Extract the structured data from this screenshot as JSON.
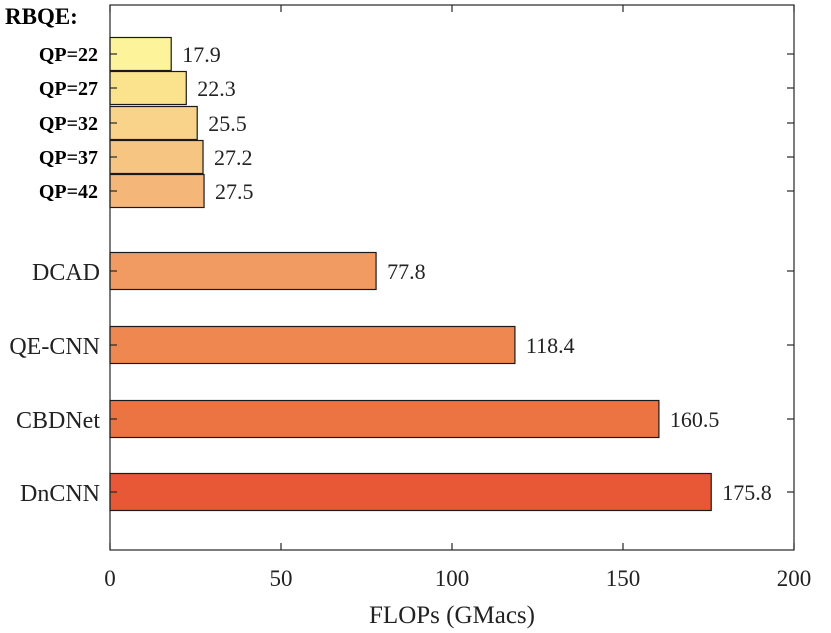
{
  "chart_data": {
    "type": "bar",
    "orientation": "horizontal",
    "title": "",
    "xlabel": "FLOPs (GMacs)",
    "ylabel": "",
    "xlim": [
      0,
      200
    ],
    "xticks": [
      0,
      50,
      100,
      150,
      200
    ],
    "grid": false,
    "group_label": "RBQE:",
    "categories": [
      "QP=22",
      "QP=27",
      "QP=32",
      "QP=37",
      "QP=42",
      "DCAD",
      "QE-CNN",
      "CBDNet",
      "DnCNN"
    ],
    "values": [
      17.9,
      22.3,
      25.5,
      27.2,
      27.5,
      77.8,
      118.4,
      160.5,
      175.8
    ],
    "value_labels": [
      "17.9",
      "22.3",
      "25.5",
      "27.2",
      "27.5",
      "77.8",
      "118.4",
      "160.5",
      "175.8"
    ],
    "colors": [
      "#fdf39a",
      "#fbe38e",
      "#f9d38a",
      "#f7c582",
      "#f5b679",
      "#f19a61",
      "#ef8751",
      "#ec7443",
      "#e95836"
    ]
  }
}
